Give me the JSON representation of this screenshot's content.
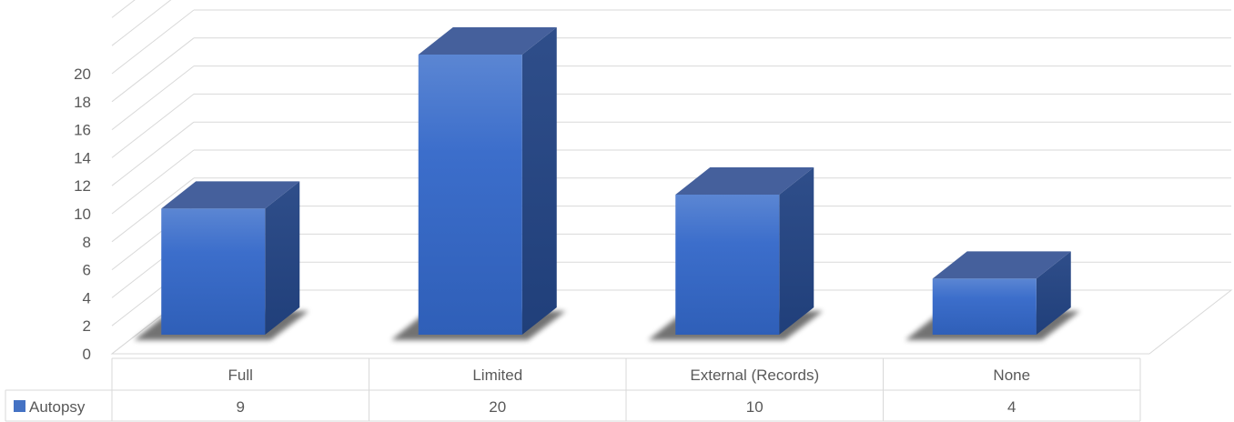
{
  "chart_data": {
    "type": "bar",
    "title": "",
    "xlabel": "",
    "ylabel": "",
    "categories": [
      "Full",
      "Limited",
      "External (Records)",
      "None"
    ],
    "series": [
      {
        "name": "Autopsy",
        "values": [
          9,
          20,
          10,
          4
        ]
      }
    ],
    "ylim": [
      0,
      20
    ],
    "y_ticks": [
      0,
      2,
      4,
      6,
      8,
      10,
      12,
      14,
      16,
      18,
      20
    ],
    "grid": true,
    "three_d": true,
    "data_table": true,
    "legend_placement": "data-table-row-header",
    "colors": {
      "bar_front": "#4472c4",
      "bar_top": "#45609c",
      "bar_side": "#28477f",
      "grid": "#d9d9d9",
      "text": "#595959"
    }
  }
}
